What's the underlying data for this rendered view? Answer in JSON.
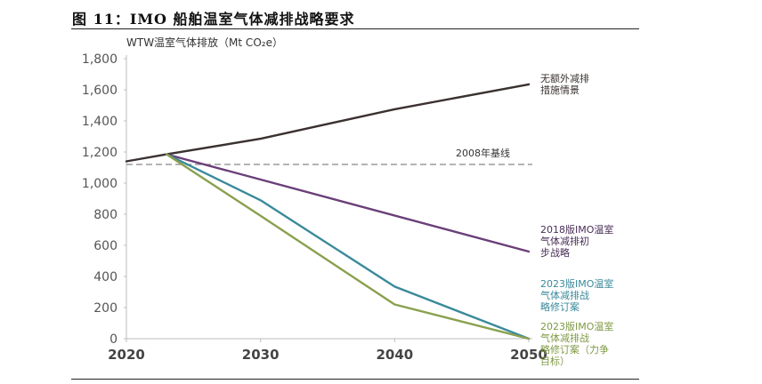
{
  "figure_title": "图 11：IMO 船舶温室气体减排战略要求",
  "chart_data": {
    "type": "line",
    "ylabel": "WTW温室气体排放（Mt CO₂e）",
    "xlim": [
      2020,
      2050
    ],
    "ylim": [
      0,
      1800
    ],
    "x_ticks": [
      "2020",
      "2030",
      "2040",
      "2050"
    ],
    "y_ticks": [
      "0",
      "200",
      "400",
      "600",
      "800",
      "1,000",
      "1,200",
      "1,400",
      "1,600",
      "1,800"
    ],
    "baseline": {
      "label": "2008年基线",
      "value": 1120,
      "color": "#888888"
    },
    "series": [
      {
        "name": "无额外减排措施情景",
        "label_lines": [
          "无额外减排",
          "措施情景"
        ],
        "color": "#3a3130",
        "x": [
          2020,
          2023,
          2030,
          2040,
          2050
        ],
        "y": [
          1140,
          1185,
          1285,
          1475,
          1635
        ]
      },
      {
        "name": "2018版IMO温室气体减排初步战略",
        "label_lines": [
          "2018版IMO温室",
          "气体减排初",
          "步战略"
        ],
        "color": "#6a3f78",
        "x": [
          2023,
          2050
        ],
        "y": [
          1185,
          560
        ]
      },
      {
        "name": "2023版IMO温室气体减排战略修订案",
        "label_lines": [
          "2023版IMO温室",
          "气体减排战",
          "略修订案"
        ],
        "color": "#3a8a9a",
        "x": [
          2023,
          2030,
          2040,
          2050
        ],
        "y": [
          1185,
          890,
          335,
          0
        ]
      },
      {
        "name": "2023版IMO温室气体减排战略修订案（力争目标）",
        "label_lines": [
          "2023版IMO温室",
          "气体减排战",
          "略修订案（力争",
          "目标）"
        ],
        "color": "#8aa04e",
        "x": [
          2023,
          2030,
          2040,
          2050
        ],
        "y": [
          1185,
          790,
          220,
          0
        ]
      }
    ]
  }
}
